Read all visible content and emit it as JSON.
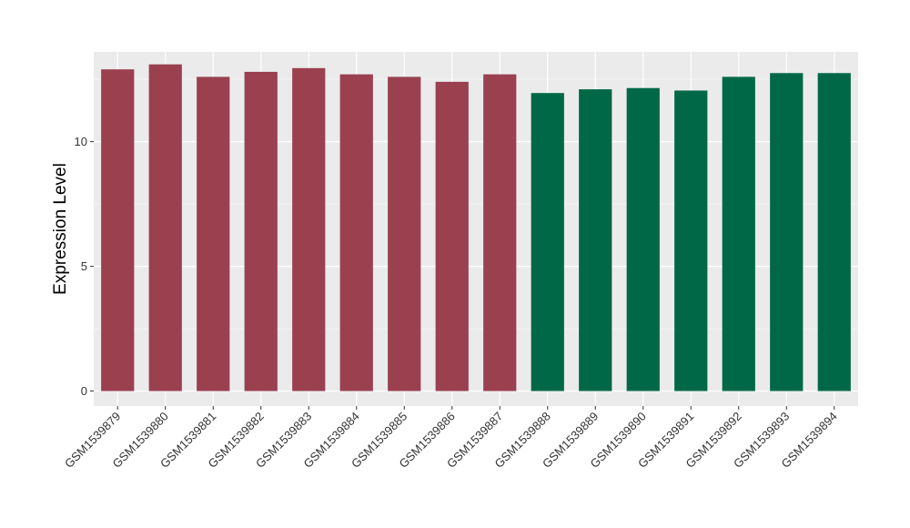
{
  "chart_data": {
    "type": "bar",
    "title": "",
    "xlabel": "",
    "ylabel": "Expression Level",
    "ylim": [
      -0.6,
      13.6
    ],
    "yticks": [
      0,
      5,
      10
    ],
    "grid": true,
    "legend": "none",
    "categories": [
      "GSM1539879",
      "GSM1539880",
      "GSM1539881",
      "GSM1539882",
      "GSM1539883",
      "GSM1539884",
      "GSM1539885",
      "GSM1539886",
      "GSM1539887",
      "GSM1539888",
      "GSM1539889",
      "GSM1539890",
      "GSM1539891",
      "GSM1539892",
      "GSM1539893",
      "GSM1539894"
    ],
    "values": [
      12.9,
      13.1,
      12.6,
      12.8,
      12.95,
      12.7,
      12.6,
      12.4,
      12.7,
      11.95,
      12.1,
      12.15,
      12.05,
      12.6,
      12.75,
      12.75
    ],
    "groups": [
      1,
      1,
      1,
      1,
      1,
      1,
      1,
      1,
      1,
      2,
      2,
      2,
      2,
      2,
      2,
      2
    ],
    "colors": {
      "group1": "#9A404F",
      "group2": "#006846",
      "panel": "#EBEBEB",
      "grid_major": "#FFFFFF",
      "grid_minor": "#F5F5F5",
      "tick": "#333333"
    }
  }
}
